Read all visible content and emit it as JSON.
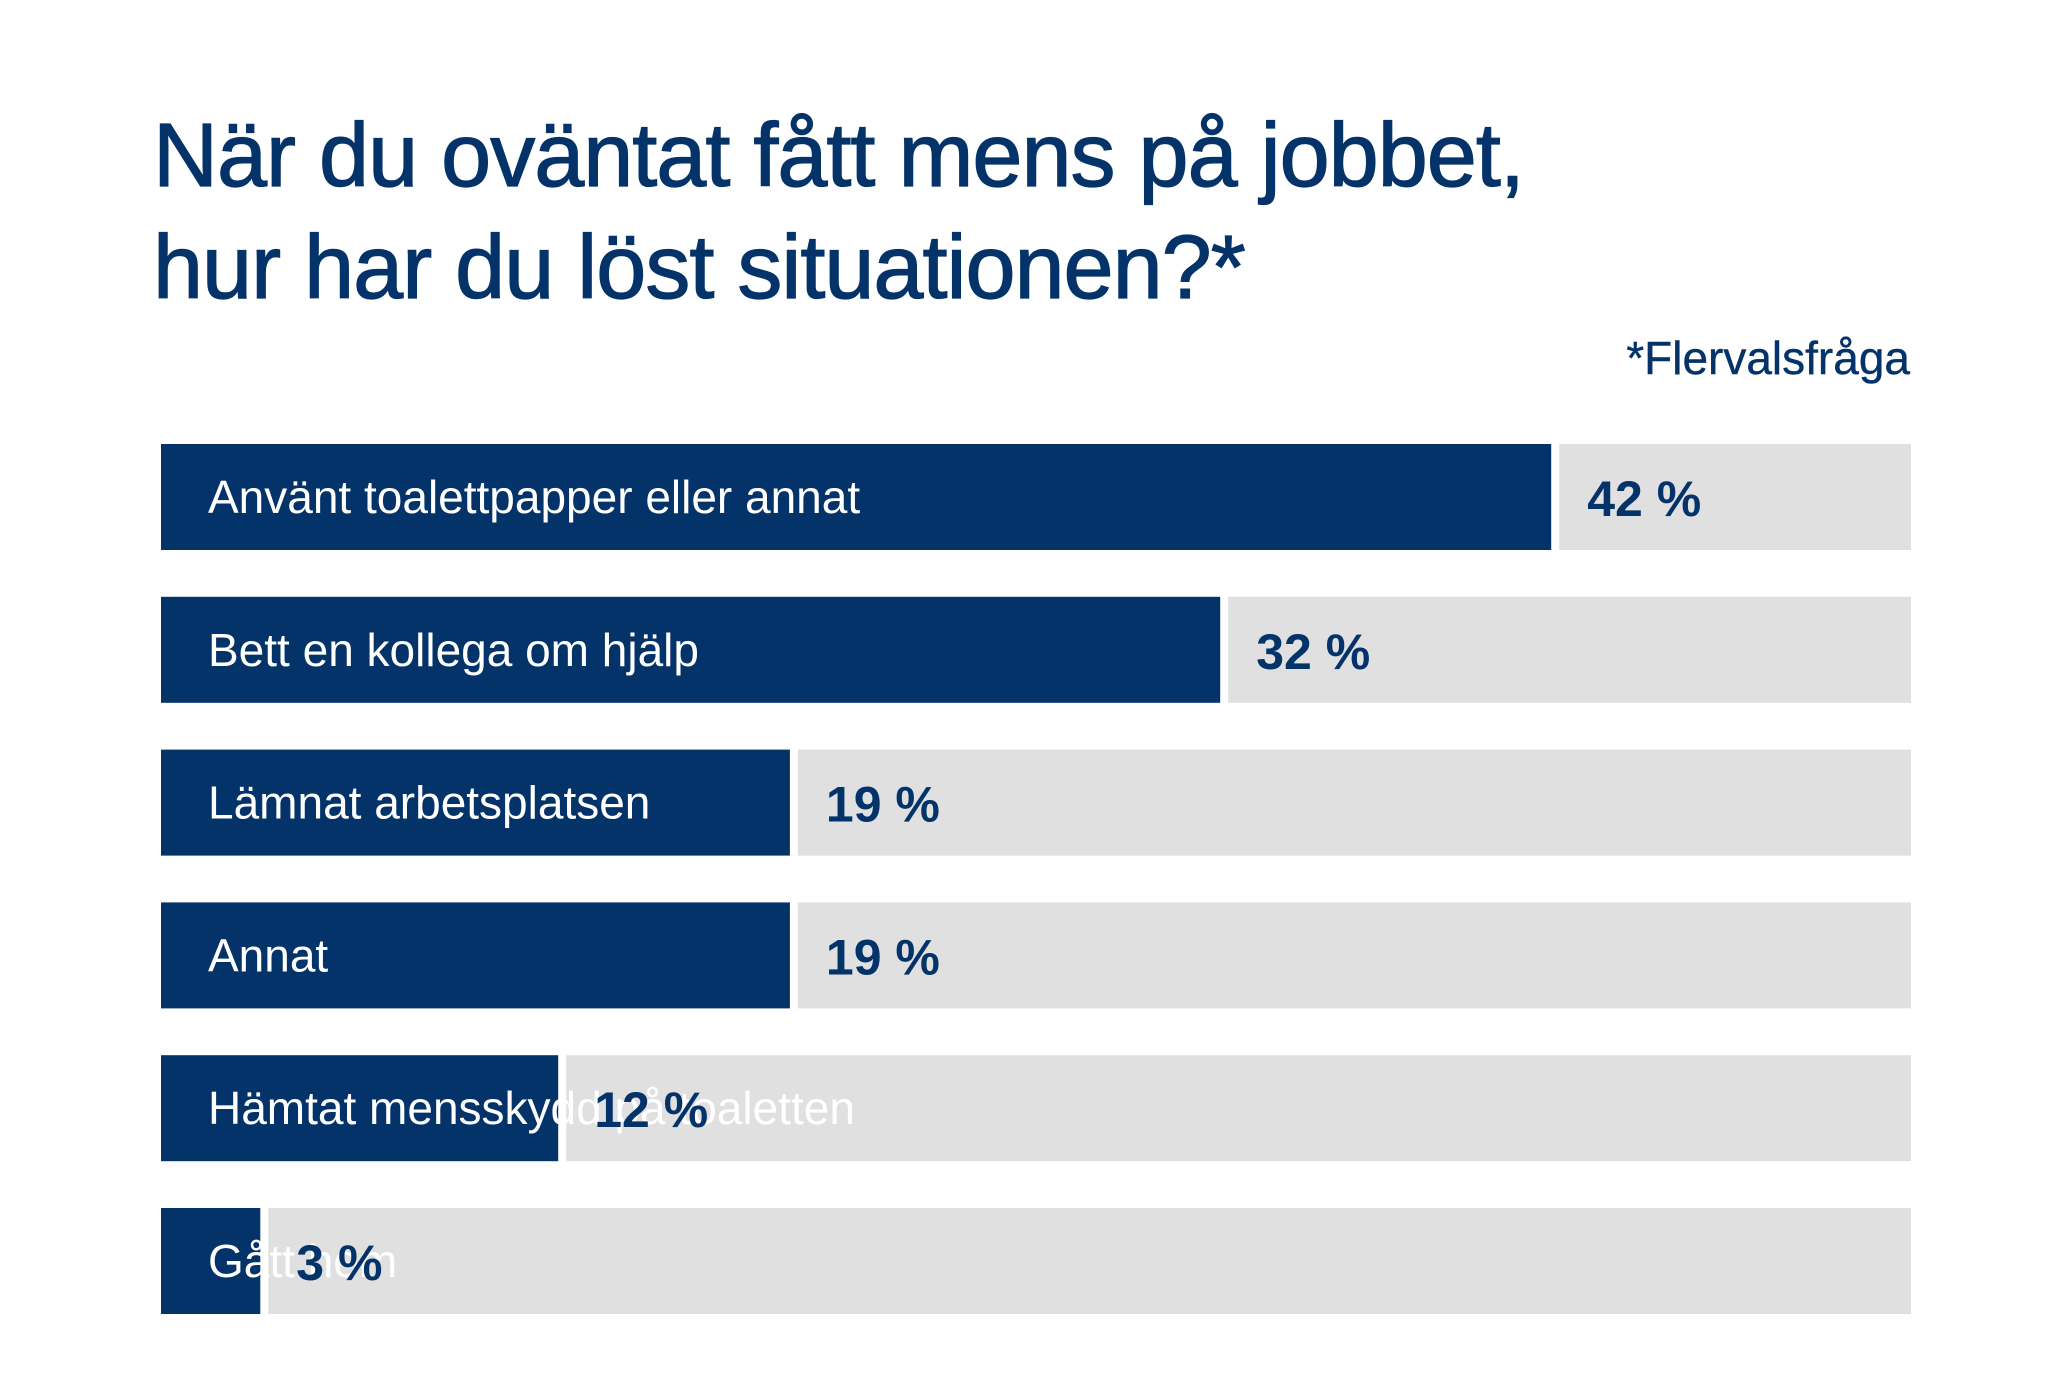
{
  "title_lines": [
    "När du oväntat fått mens på jobbet,",
    "hur har du löst situationen?*"
  ],
  "footnote": "*Flervalsfråga",
  "colors": {
    "bar": "#04336a",
    "track": "#e0e0e0",
    "title": "#04336a"
  },
  "chart_data": {
    "type": "bar",
    "orientation": "horizontal",
    "title": "När du oväntat fått mens på jobbet, hur har du löst situationen?*",
    "categories": [
      "Använt toalettpapper eller annat",
      "Bett en kollega om hjälp",
      "Lämnat arbetsplatsen",
      "Annat",
      "Hämtat mensskydd på toaletten",
      "Gått hem"
    ],
    "values": [
      42,
      32,
      19,
      19,
      12,
      3
    ],
    "value_labels": [
      "42 %",
      "32 %",
      "19 %",
      "19 %",
      "12 %",
      "3 %"
    ],
    "unit": "%",
    "xlim": [
      0,
      100
    ],
    "xlabel": "",
    "ylabel": "",
    "grid": false
  }
}
